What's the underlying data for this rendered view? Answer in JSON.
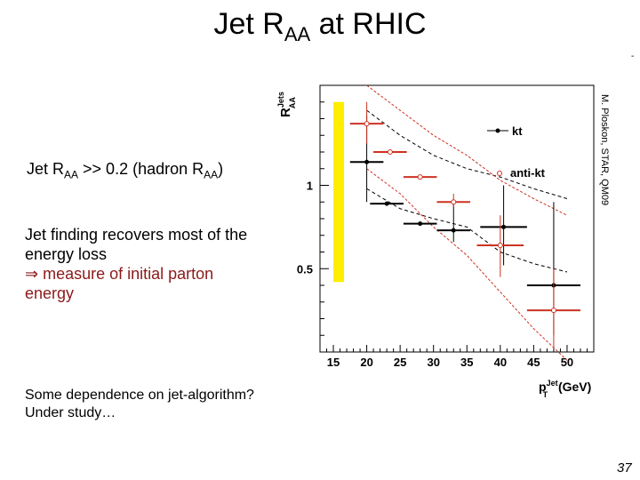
{
  "slide": {
    "title_main": "Jet R",
    "title_sub": "AA",
    "title_rest": " at RHIC",
    "page_number": "37",
    "corner_mark": "-"
  },
  "bullets": {
    "b1_pre": "Jet R",
    "b1_sub1": "AA",
    "b1_mid": " >> 0.2 (hadron R",
    "b1_sub2": "AA",
    "b1_end": ")",
    "b2_line1": "Jet finding recovers most of the",
    "b2_line2": "energy loss",
    "b2_arrow": "⇒",
    "b2_line3": " measure of initial parton",
    "b2_line4": "energy",
    "b3_line1": "Some dependence on jet-algorithm?",
    "b3_line2": "Under study…"
  },
  "chart_data": {
    "type": "scatter",
    "ylabel_main": "R",
    "ylabel_sup": "Jets",
    "ylabel_sub": "AA",
    "xlabel_main": "p",
    "xlabel_sup": "Jet",
    "xlabel_sub": "T",
    "xlabel_unit": " (GeV)",
    "credit": "M. Ploskon, STAR, QM09",
    "xlim": [
      13,
      54
    ],
    "ylim": [
      0,
      1.6
    ],
    "x_ticks": [
      15,
      20,
      25,
      30,
      35,
      40,
      45,
      50
    ],
    "y_ticks": [
      {
        "value": 1,
        "label": "1"
      },
      {
        "value": 0.5,
        "label": "0.5"
      }
    ],
    "legend_position": "top-right",
    "series": [
      {
        "name": "kt",
        "color": "#000000",
        "marker": "filled-circle",
        "points": [
          {
            "x": 20,
            "y": 1.14,
            "xerr": 2.5,
            "ylo": 0.9,
            "yhi": 1.42
          },
          {
            "x": 23,
            "y": 0.89,
            "xerr": 2.5,
            "ylo": 0.89,
            "yhi": 0.89
          },
          {
            "x": 28,
            "y": 0.77,
            "xerr": 2.5,
            "ylo": 0.77,
            "yhi": 0.77
          },
          {
            "x": 33,
            "y": 0.73,
            "xerr": 2.5,
            "ylo": 0.66,
            "yhi": 0.9
          },
          {
            "x": 40.5,
            "y": 0.75,
            "xerr": 3.5,
            "ylo": 0.52,
            "yhi": 1.0
          },
          {
            "x": 48,
            "y": 0.4,
            "xerr": 4,
            "ylo": 0.1,
            "yhi": 0.9
          }
        ]
      },
      {
        "name": "anti-kt",
        "color": "#cc3322",
        "marker": "open-circle",
        "points": [
          {
            "x": 20,
            "y": 1.37,
            "xerr": 2.5,
            "ylo": 1.25,
            "yhi": 1.5
          },
          {
            "x": 23.5,
            "y": 1.2,
            "xerr": 2.5,
            "ylo": 1.2,
            "yhi": 1.2
          },
          {
            "x": 28,
            "y": 1.05,
            "xerr": 2.5,
            "ylo": 1.05,
            "yhi": 1.05
          },
          {
            "x": 33,
            "y": 0.9,
            "xerr": 2.5,
            "ylo": 0.87,
            "yhi": 0.95
          },
          {
            "x": 40,
            "y": 0.64,
            "xerr": 3.5,
            "ylo": 0.45,
            "yhi": 0.82
          },
          {
            "x": 48,
            "y": 0.25,
            "xerr": 4,
            "ylo": 0.02,
            "yhi": 0.5
          }
        ]
      }
    ],
    "systematic_bands": [
      {
        "series": "kt",
        "color": "#000000",
        "upper": [
          [
            20,
            1.45
          ],
          [
            25,
            1.3
          ],
          [
            30,
            1.18
          ],
          [
            35,
            1.1
          ],
          [
            40,
            1.05
          ],
          [
            45,
            0.98
          ],
          [
            50,
            0.92
          ]
        ],
        "lower": [
          [
            20,
            0.98
          ],
          [
            25,
            0.86
          ],
          [
            30,
            0.8
          ],
          [
            35,
            0.75
          ],
          [
            40,
            0.6
          ],
          [
            45,
            0.53
          ],
          [
            50,
            0.48
          ]
        ]
      },
      {
        "series": "anti-kt",
        "color": "#cc3322",
        "upper": [
          [
            20,
            1.6
          ],
          [
            25,
            1.45
          ],
          [
            30,
            1.3
          ],
          [
            35,
            1.18
          ],
          [
            40,
            1.03
          ],
          [
            45,
            0.92
          ],
          [
            50,
            0.82
          ]
        ],
        "lower": [
          [
            20,
            1.1
          ],
          [
            25,
            0.95
          ],
          [
            30,
            0.75
          ],
          [
            35,
            0.58
          ],
          [
            40,
            0.36
          ],
          [
            45,
            0.14
          ],
          [
            50,
            -0.05
          ]
        ]
      }
    ],
    "norm_band": {
      "color": "#ffee00",
      "ylo": 0.42,
      "yhi": 1.5,
      "x": 15.8
    }
  }
}
